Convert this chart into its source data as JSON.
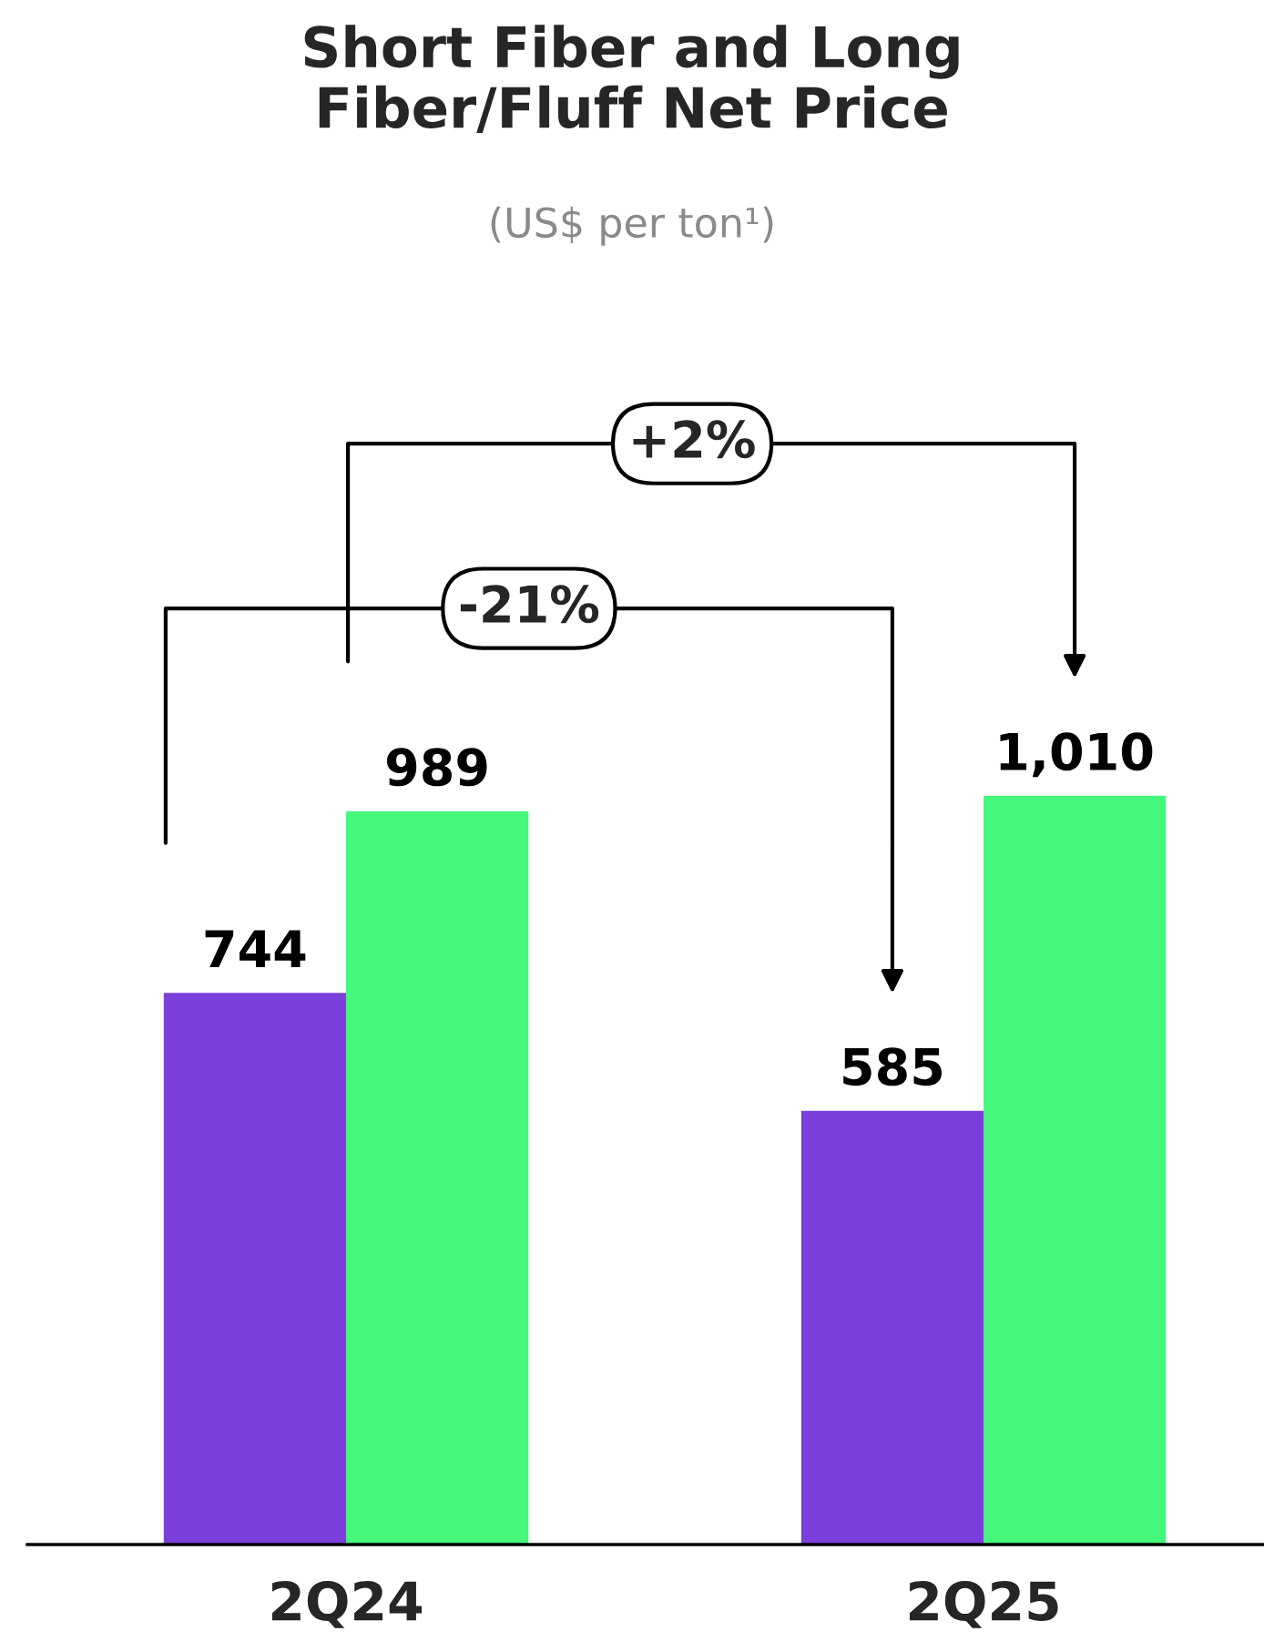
{
  "chart_data": {
    "type": "bar",
    "title": "Short Fiber and Long\nFiber/Fluff Net Price",
    "subtitle": "(US$ per ton¹)",
    "categories": [
      "2Q24",
      "2Q25"
    ],
    "series": [
      {
        "color": "#7b3fdb",
        "values": [
          744,
          585
        ],
        "value_labels": [
          "744",
          "585"
        ]
      },
      {
        "color": "#45f77a",
        "values": [
          989,
          1010
        ],
        "value_labels": [
          "989",
          "1,010"
        ]
      }
    ],
    "annotations": [
      "-21%",
      "+2%"
    ],
    "legend": false,
    "grid": false
  }
}
